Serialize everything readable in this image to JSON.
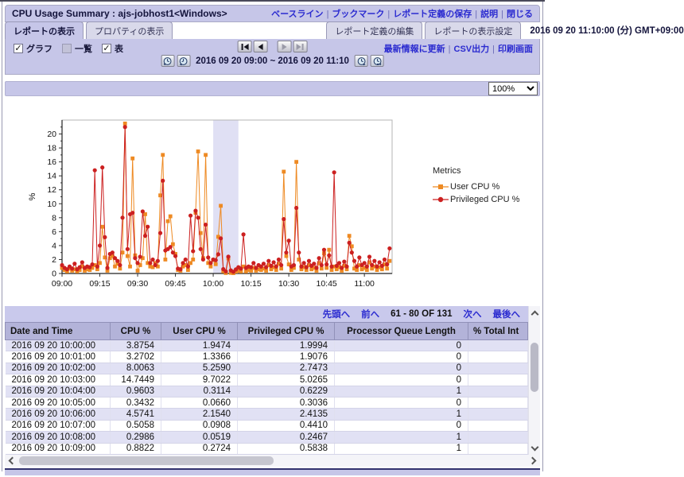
{
  "window": {
    "title": "CPU Usage Summary : ajs-jobhost1<Windows>",
    "title_links": [
      "ベースライン",
      "ブックマーク",
      "レポート定義の保存",
      "説明",
      "閉じる"
    ]
  },
  "tabs": {
    "report_view": "レポートの表示",
    "properties": "プロパティの表示",
    "edit_definition": "レポート定義の編集",
    "display_settings": "レポートの表示設定",
    "datetime": "2016 09 20 11:10:00 (分) GMT+09:00"
  },
  "toolbar": {
    "checkboxes": [
      {
        "label": "グラフ",
        "checked": true,
        "enabled": true
      },
      {
        "label": "一覧",
        "checked": false,
        "enabled": false
      },
      {
        "label": "表",
        "checked": true,
        "enabled": true
      }
    ],
    "range_text": "2016 09 20 09:00 ~ 2016 09 20 11:10",
    "links": [
      "最新情報に更新",
      "CSV出力",
      "印刷画面"
    ]
  },
  "zoom": {
    "value": "100%"
  },
  "chart_data": {
    "type": "line",
    "ylabel": "%",
    "ylim": [
      0,
      22
    ],
    "yticks": [
      0,
      2,
      4,
      6,
      8,
      10,
      12,
      14,
      16,
      18,
      20
    ],
    "xtick_labels": [
      "09:00",
      "09:15",
      "09:30",
      "09:45",
      "10:00",
      "10:15",
      "10:30",
      "10:45",
      "11:00"
    ],
    "xtick_minutes": [
      0,
      15,
      30,
      45,
      60,
      75,
      90,
      105,
      120
    ],
    "x_range_minutes": [
      0,
      131
    ],
    "highlight_band_minutes": [
      60,
      70
    ],
    "legend_title": "Metrics",
    "series": [
      {
        "name": "User CPU %",
        "color": "#EE8A23",
        "marker": "square",
        "values": [
          0.8,
          0.5,
          0.3,
          0.7,
          0.4,
          0.6,
          0.3,
          0.5,
          1.0,
          0.4,
          0.6,
          0.5,
          0.8,
          1.2,
          0.6,
          1.5,
          6.7,
          2.3,
          0.4,
          2.2,
          2.5,
          1.0,
          1.4,
          0.7,
          3.0,
          21.5,
          2.5,
          1.0,
          16.5,
          2.6,
          0.4,
          1.2,
          2.2,
          8.5,
          1.5,
          1.0,
          0.9,
          1.5,
          1.0,
          11.2,
          17.0,
          2.0,
          7.5,
          8.2,
          4.2,
          2.8,
          0.5,
          0.4,
          1.0,
          1.2,
          0.5,
          1.5,
          2.0,
          8.7,
          17.5,
          5.8,
          2.2,
          17.0,
          1.5,
          1.0,
          1.9474,
          1.3366,
          5.259,
          9.7022,
          0.3114,
          0.066,
          2.154,
          0.0908,
          0.0519,
          0.2724,
          0.4,
          0.3,
          1.0,
          0.3,
          0.5,
          0.4,
          0.8,
          0.4,
          0.6,
          0.5,
          0.7,
          0.4,
          1.2,
          0.6,
          0.9,
          0.5,
          1.4,
          0.7,
          14.6,
          2.5,
          1.3,
          0.5,
          0.8,
          16.0,
          2.0,
          0.6,
          0.9,
          0.5,
          1.2,
          0.6,
          0.8,
          0.4,
          1.5,
          0.7,
          2.9,
          0.8,
          3.4,
          0.5,
          1.0,
          0.6,
          0.9,
          0.4,
          1.1,
          0.6,
          5.4,
          3.9,
          0.7,
          0.5,
          1.2,
          0.6,
          0.8,
          0.5,
          1.6,
          0.7,
          1.0,
          0.5,
          0.9,
          0.6,
          1.3,
          0.7,
          1.8
        ]
      },
      {
        "name": "Privileged CPU %",
        "color": "#CC2020",
        "marker": "circle",
        "values": [
          1.2,
          0.8,
          0.6,
          1.0,
          0.7,
          1.4,
          0.6,
          0.9,
          1.6,
          0.8,
          1.0,
          0.9,
          1.3,
          14.8,
          1.0,
          4.0,
          15.2,
          5.2,
          0.8,
          2.8,
          3.0,
          2.2,
          1.8,
          1.2,
          8.0,
          21.0,
          3.5,
          8.5,
          8.7,
          2.2,
          1.5,
          2.4,
          8.9,
          5.4,
          6.7,
          1.5,
          2.0,
          1.2,
          1.8,
          5.8,
          13.3,
          3.3,
          3.5,
          3.8,
          3.0,
          2.5,
          0.7,
          0.6,
          1.5,
          2.0,
          1.0,
          8.3,
          3.2,
          9.0,
          8.0,
          3.5,
          2.0,
          7.0,
          2.3,
          1.5,
          1.9994,
          1.9076,
          2.7473,
          5.0265,
          0.6229,
          0.3036,
          2.4135,
          0.441,
          0.2467,
          0.5838,
          0.9,
          0.7,
          5.6,
          0.8,
          1.0,
          0.9,
          1.5,
          0.8,
          1.2,
          1.0,
          1.4,
          0.9,
          1.8,
          1.1,
          1.6,
          1.0,
          2.0,
          1.2,
          7.8,
          3.0,
          4.7,
          1.0,
          1.2,
          9.4,
          3.0,
          1.0,
          1.5,
          0.9,
          1.8,
          1.1,
          1.4,
          0.8,
          2.2,
          1.2,
          3.4,
          1.3,
          2.6,
          1.0,
          14.5,
          1.1,
          1.5,
          0.8,
          1.7,
          1.0,
          4.4,
          3.0,
          1.8,
          1.0,
          2.3,
          1.2,
          1.5,
          1.0,
          2.4,
          1.2,
          1.8,
          1.0,
          1.6,
          1.1,
          2.0,
          1.3,
          3.6
        ]
      }
    ]
  },
  "pagination": {
    "first": "先頭へ",
    "prev": "前へ",
    "range": "61 - 80 OF 131",
    "next": "次へ",
    "last": "最後へ"
  },
  "table": {
    "headers": [
      "Date and Time",
      "CPU %",
      "User CPU %",
      "Privileged CPU %",
      "Processor Queue Length",
      "% Total Int"
    ],
    "rows": [
      [
        "2016 09 20 10:00:00",
        "3.8754",
        "1.9474",
        "1.9994",
        "0",
        ""
      ],
      [
        "2016 09 20 10:01:00",
        "3.2702",
        "1.3366",
        "1.9076",
        "0",
        ""
      ],
      [
        "2016 09 20 10:02:00",
        "8.0063",
        "5.2590",
        "2.7473",
        "0",
        ""
      ],
      [
        "2016 09 20 10:03:00",
        "14.7449",
        "9.7022",
        "5.0265",
        "0",
        ""
      ],
      [
        "2016 09 20 10:04:00",
        "0.9603",
        "0.3114",
        "0.6229",
        "1",
        ""
      ],
      [
        "2016 09 20 10:05:00",
        "0.3432",
        "0.0660",
        "0.3036",
        "0",
        ""
      ],
      [
        "2016 09 20 10:06:00",
        "4.5741",
        "2.1540",
        "2.4135",
        "1",
        ""
      ],
      [
        "2016 09 20 10:07:00",
        "0.5058",
        "0.0908",
        "0.4410",
        "0",
        ""
      ],
      [
        "2016 09 20 10:08:00",
        "0.2986",
        "0.0519",
        "0.2467",
        "1",
        ""
      ],
      [
        "2016 09 20 10:09:00",
        "0.8822",
        "0.2724",
        "0.5838",
        "1",
        ""
      ]
    ]
  }
}
